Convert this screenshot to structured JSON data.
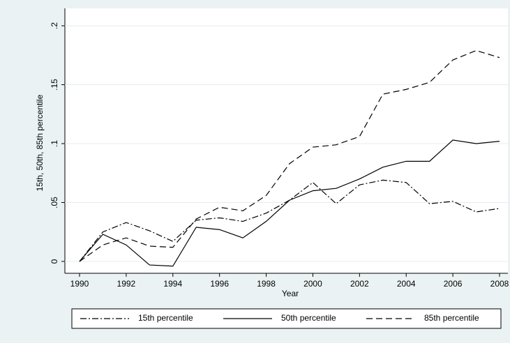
{
  "chart_data": {
    "type": "line",
    "x_label": "Year",
    "y_label": "15th, 50th, 85th percentile",
    "x": [
      1990,
      1991,
      1992,
      1993,
      1994,
      1995,
      1996,
      1997,
      1998,
      1999,
      2000,
      2001,
      2002,
      2003,
      2004,
      2005,
      2006,
      2007,
      2008
    ],
    "series": [
      {
        "name": "15th percentile",
        "color": "#000000",
        "dash": "dashdot",
        "values": [
          0,
          0.025,
          0.033,
          0.026,
          0.017,
          0.035,
          0.037,
          0.034,
          0.041,
          0.052,
          0.067,
          0.049,
          0.065,
          0.069,
          0.067,
          0.049,
          0.051,
          0.042,
          0.045
        ]
      },
      {
        "name": "50th percentile",
        "color": "#000000",
        "dash": "solid",
        "values": [
          0,
          0.023,
          0.014,
          -0.003,
          -0.004,
          0.029,
          0.027,
          0.02,
          0.034,
          0.052,
          0.06,
          0.062,
          0.07,
          0.08,
          0.085,
          0.085,
          0.103,
          0.1,
          0.102
        ]
      },
      {
        "name": "85th percentile",
        "color": "#000000",
        "dash": "dashed",
        "values": [
          0,
          0.014,
          0.02,
          0.013,
          0.012,
          0.036,
          0.046,
          0.043,
          0.056,
          0.083,
          0.097,
          0.099,
          0.106,
          0.142,
          0.146,
          0.152,
          0.171,
          0.179,
          0.173
        ]
      }
    ],
    "xlim": [
      1990,
      2008
    ],
    "xticks": [
      1990,
      1992,
      1994,
      1996,
      1998,
      2000,
      2002,
      2004,
      2006,
      2008
    ],
    "ylim": [
      0,
      0.2
    ],
    "yticks": [
      0,
      {
        "value": 0.05,
        "label": ".05"
      },
      {
        "value": 0.1,
        "label": ".1"
      },
      {
        "value": 0.15,
        "label": ".15"
      },
      {
        "value": 0.2,
        "label": ".2"
      }
    ],
    "grid": true,
    "legend": "bottom"
  }
}
